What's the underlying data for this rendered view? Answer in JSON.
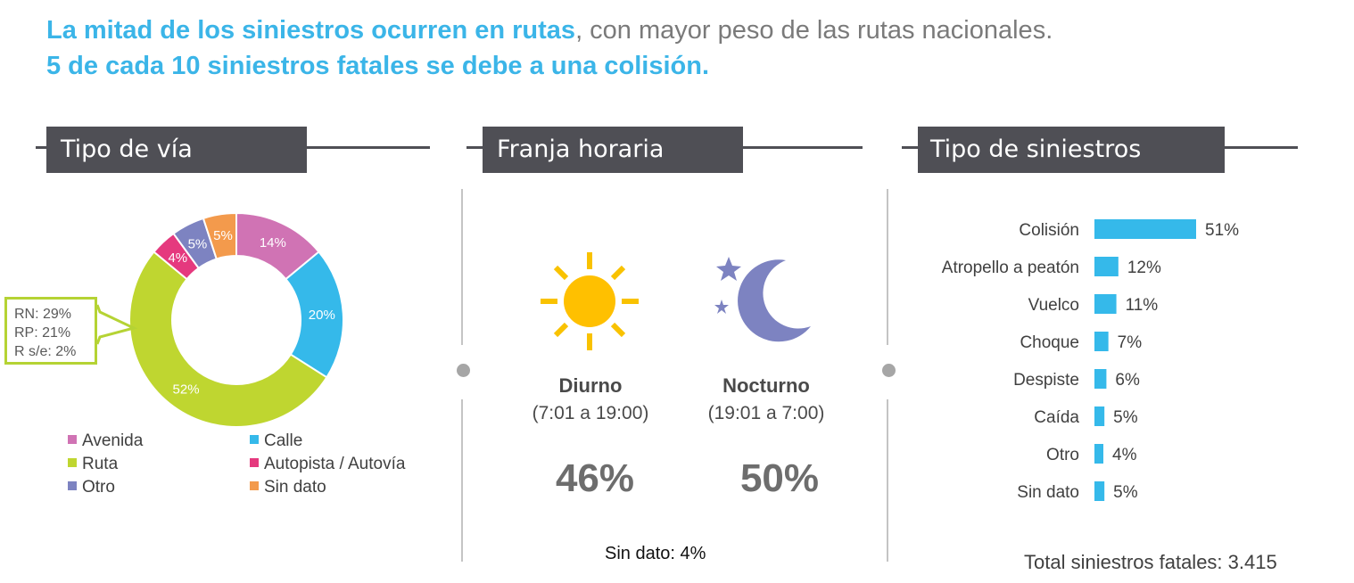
{
  "headline": {
    "line1_strong": "La mitad de los siniestros ocurren en rutas",
    "line1_normal": ", con mayor peso de las rutas nacionales.",
    "line2_strong": "5 de cada 10 siniestros fatales se debe a una colisión."
  },
  "sections": {
    "tipo_via": "Tipo de vía",
    "franja_horaria": "Franja horaria",
    "tipo_siniestros": "Tipo de siniestros"
  },
  "callout": {
    "rn": "RN: 29%",
    "rp": "RP: 21%",
    "rse": "R s/e: 2%"
  },
  "franja": {
    "diurno": {
      "name": "Diurno",
      "range": "(7:01 a 19:00)",
      "pct": "46%"
    },
    "nocturno": {
      "name": "Nocturno",
      "range": "(19:01 a 7:00)",
      "pct": "50%"
    },
    "sin_dato": "Sin dato: 4%"
  },
  "total": "Total siniestros fatales: 3.415",
  "chart_data": [
    {
      "type": "pie",
      "variant": "donut",
      "title": "Tipo de vía",
      "categories": [
        "Avenida",
        "Calle",
        "Ruta",
        "Autopista / Autovía",
        "Otro",
        "Sin dato"
      ],
      "values": [
        14,
        20,
        52,
        4,
        5,
        5
      ],
      "labels": [
        "14%",
        "20%",
        "52%",
        "4%",
        "5%",
        "5%"
      ],
      "colors": [
        "#d073b4",
        "#35b9ea",
        "#bfd630",
        "#e5397e",
        "#7d83c1",
        "#f39a4c"
      ],
      "legend_position": "bottom"
    },
    {
      "type": "bar",
      "orientation": "horizontal",
      "title": "Tipo de siniestros",
      "categories": [
        "Colisión",
        "Atropello a peatón",
        "Vuelco",
        "Choque",
        "Despiste",
        "Caída",
        "Otro",
        "Sin dato"
      ],
      "values": [
        51,
        12,
        11,
        7,
        6,
        5,
        4,
        5
      ],
      "labels": [
        "51%",
        "12%",
        "11%",
        "7%",
        "6%",
        "5%",
        "4%",
        "5%"
      ],
      "color": "#35b9ea",
      "xlim": [
        0,
        51
      ]
    }
  ]
}
